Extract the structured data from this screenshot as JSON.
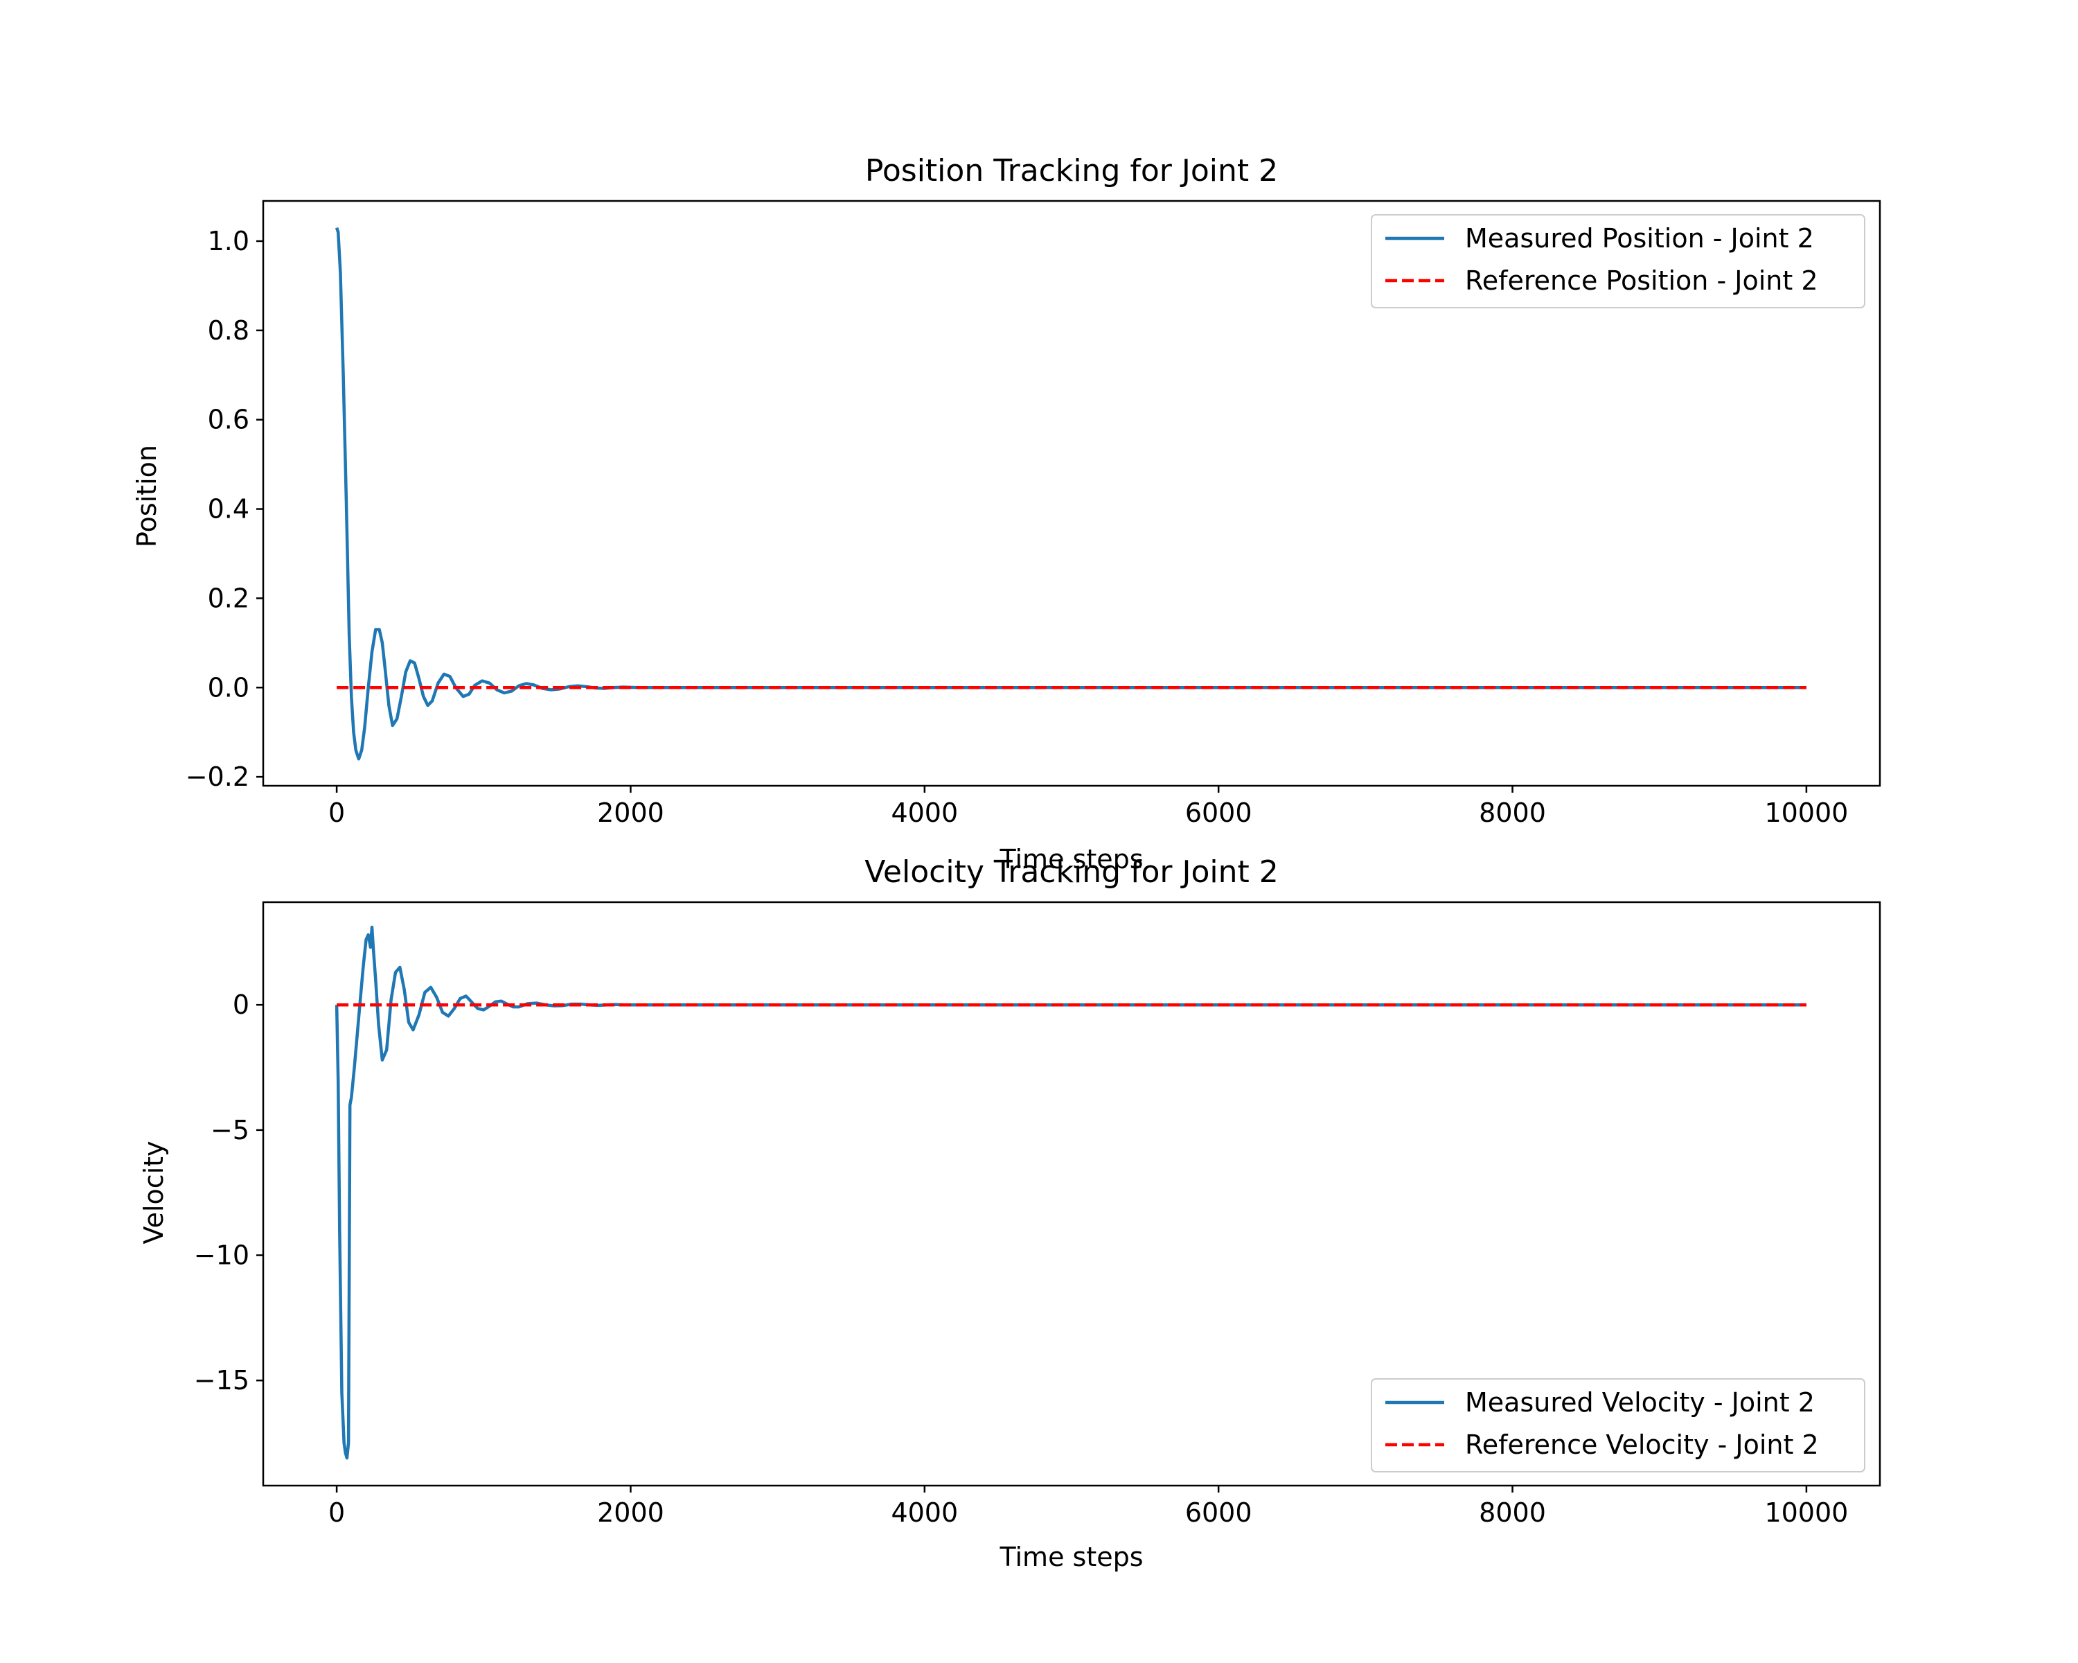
{
  "colors": {
    "measured": "#1f77b4",
    "reference": "#ff0000"
  },
  "chart_data": [
    {
      "type": "line",
      "title": "Position Tracking for Joint 2",
      "xlabel": "Time steps",
      "ylabel": "Position",
      "xlim": [
        -500,
        10500
      ],
      "ylim": [
        -0.22,
        1.09
      ],
      "xticks": [
        0,
        2000,
        4000,
        6000,
        8000,
        10000
      ],
      "xtick_labels": [
        "0",
        "2000",
        "4000",
        "6000",
        "8000",
        "10000"
      ],
      "yticks": [
        -0.2,
        0.0,
        0.2,
        0.4,
        0.6,
        0.8,
        1.0
      ],
      "ytick_labels": [
        "−0.2",
        "0.0",
        "0.2",
        "0.4",
        "0.6",
        "0.8",
        "1.0"
      ],
      "legend_position": "upper right",
      "series": [
        {
          "name": "Measured Position - Joint 2",
          "style": "solid",
          "x": [
            0,
            10,
            25,
            45,
            65,
            85,
            100,
            115,
            130,
            150,
            170,
            190,
            215,
            240,
            265,
            290,
            310,
            330,
            355,
            380,
            410,
            440,
            470,
            500,
            530,
            560,
            590,
            620,
            650,
            690,
            730,
            770,
            810,
            860,
            900,
            940,
            990,
            1040,
            1090,
            1140,
            1190,
            1240,
            1290,
            1340,
            1400,
            1460,
            1520,
            1580,
            1640,
            1700,
            1760,
            1820,
            1880,
            1950,
            2050,
            2200,
            2400,
            3000,
            5000,
            10000
          ],
          "y": [
            1.03,
            1.02,
            0.93,
            0.7,
            0.42,
            0.12,
            -0.02,
            -0.1,
            -0.14,
            -0.16,
            -0.14,
            -0.09,
            0.0,
            0.08,
            0.13,
            0.13,
            0.1,
            0.04,
            -0.04,
            -0.085,
            -0.07,
            -0.02,
            0.035,
            0.06,
            0.055,
            0.02,
            -0.02,
            -0.04,
            -0.03,
            0.01,
            0.03,
            0.025,
            0.0,
            -0.02,
            -0.015,
            0.005,
            0.015,
            0.01,
            -0.005,
            -0.012,
            -0.008,
            0.004,
            0.009,
            0.006,
            -0.002,
            -0.005,
            -0.003,
            0.002,
            0.004,
            0.002,
            -0.001,
            -0.002,
            0.0,
            0.001,
            0.0,
            0.0,
            0.0,
            0.0,
            0.0,
            0.0
          ]
        },
        {
          "name": "Reference Position - Joint 2",
          "style": "dashed",
          "x": [
            0,
            10000
          ],
          "y": [
            0.0,
            0.0
          ]
        }
      ]
    },
    {
      "type": "line",
      "title": "Velocity Tracking for Joint 2",
      "xlabel": "Time steps",
      "ylabel": "Velocity",
      "xlim": [
        -500,
        10500
      ],
      "ylim": [
        -19.2,
        4.1
      ],
      "xticks": [
        0,
        2000,
        4000,
        6000,
        8000,
        10000
      ],
      "xtick_labels": [
        "0",
        "2000",
        "4000",
        "6000",
        "8000",
        "10000"
      ],
      "yticks": [
        -15,
        -10,
        -5,
        0
      ],
      "ytick_labels": [
        "−15",
        "−10",
        "−5",
        "0"
      ],
      "legend_position": "lower right",
      "series": [
        {
          "name": "Measured Velocity - Joint 2",
          "style": "solid",
          "x": [
            0,
            10,
            20,
            35,
            50,
            60,
            70,
            80,
            90,
            100,
            120,
            150,
            180,
            200,
            215,
            230,
            240,
            250,
            265,
            285,
            310,
            340,
            370,
            400,
            430,
            460,
            490,
            520,
            560,
            600,
            640,
            680,
            720,
            760,
            800,
            840,
            880,
            920,
            960,
            1000,
            1040,
            1080,
            1120,
            1160,
            1200,
            1240,
            1300,
            1360,
            1420,
            1480,
            1540,
            1600,
            1660,
            1720,
            1780,
            1840,
            1900,
            1960,
            2040,
            2120,
            2200,
            2300,
            2450,
            3000,
            5000,
            10000
          ],
          "y": [
            0.0,
            -3.0,
            -9.0,
            -15.5,
            -17.5,
            -17.9,
            -18.1,
            -17.5,
            -4.0,
            -3.7,
            -2.5,
            -0.5,
            1.5,
            2.6,
            2.8,
            2.3,
            3.1,
            2.2,
            1.0,
            -0.8,
            -2.2,
            -1.8,
            0.2,
            1.3,
            1.5,
            0.6,
            -0.7,
            -1.0,
            -0.4,
            0.5,
            0.7,
            0.3,
            -0.3,
            -0.45,
            -0.15,
            0.25,
            0.35,
            0.1,
            -0.15,
            -0.2,
            -0.05,
            0.12,
            0.15,
            0.03,
            -0.08,
            -0.08,
            0.05,
            0.07,
            0.0,
            -0.04,
            -0.03,
            0.03,
            0.03,
            0.0,
            -0.02,
            0.0,
            0.01,
            0.0,
            0.0,
            0.0,
            0.0,
            0.0,
            0.0,
            0.0,
            0.0,
            0.0
          ]
        },
        {
          "name": "Reference Velocity - Joint 2",
          "style": "dashed",
          "x": [
            0,
            10000
          ],
          "y": [
            0.0,
            0.0
          ]
        }
      ]
    }
  ]
}
